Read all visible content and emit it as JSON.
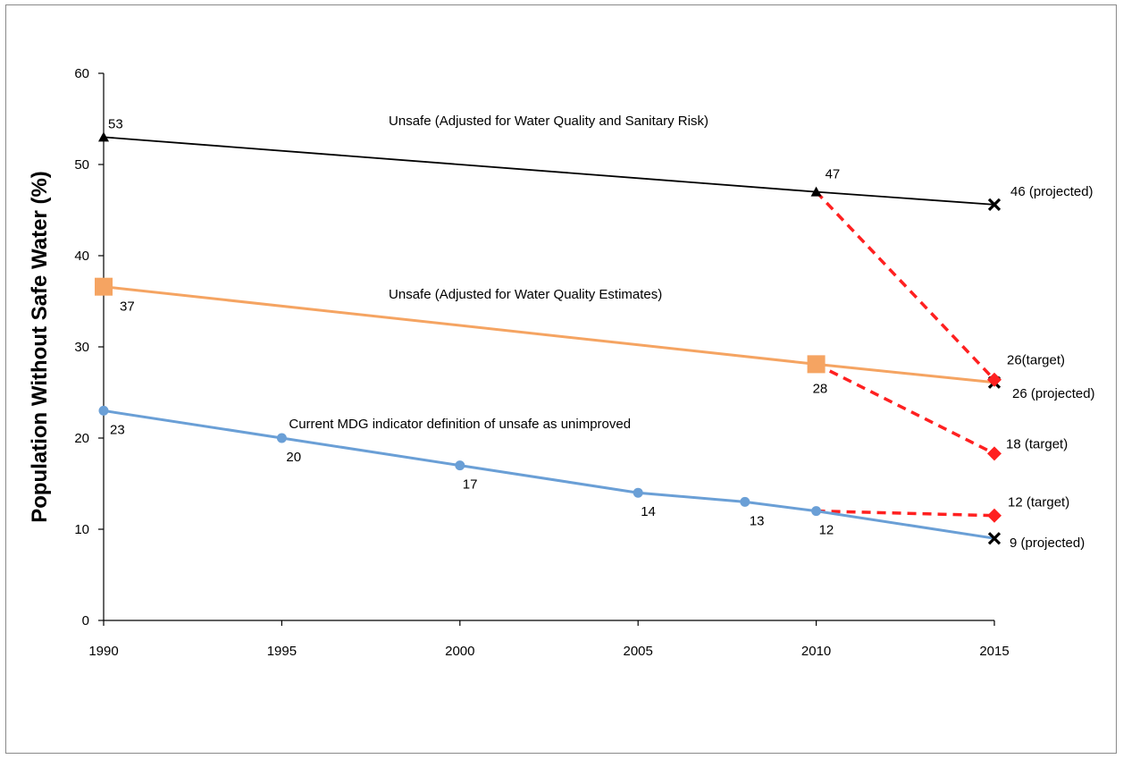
{
  "chart_data": {
    "type": "line",
    "title": "",
    "xlabel": "",
    "ylabel": "Population Without Safe Water (%)",
    "xlim": [
      1990,
      2015
    ],
    "ylim": [
      0,
      60
    ],
    "x_ticks": [
      1990,
      1995,
      2000,
      2005,
      2010,
      2015
    ],
    "y_ticks": [
      0,
      10,
      20,
      30,
      40,
      50,
      60
    ],
    "grid": false,
    "legend": "none",
    "series": [
      {
        "name": "Unsafe (Adjusted for Water Quality and Sanitary Risk)",
        "color": "#000000",
        "marker": "triangle",
        "points": [
          {
            "x": 1990,
            "y": 53,
            "label": "53"
          },
          {
            "x": 2010,
            "y": 47,
            "label": "47"
          }
        ],
        "projected": {
          "x": 2015,
          "y": 45.6,
          "label": "46 (projected)"
        }
      },
      {
        "name": "Unsafe (Adjusted for Water Quality Estimates)",
        "color": "#f5a462",
        "marker": "square",
        "points": [
          {
            "x": 1990,
            "y": 36.6,
            "label": "37"
          },
          {
            "x": 2010,
            "y": 28.1,
            "label": "28"
          }
        ],
        "projected": {
          "x": 2015,
          "y": 26.1,
          "label": "26 (projected)"
        }
      },
      {
        "name": "Current MDG indicator definition of unsafe as unimproved",
        "color": "#6a9fd6",
        "marker": "circle",
        "points": [
          {
            "x": 1990,
            "y": 23,
            "label": "23"
          },
          {
            "x": 1995,
            "y": 20,
            "label": "20"
          },
          {
            "x": 2000,
            "y": 17,
            "label": "17"
          },
          {
            "x": 2005,
            "y": 14,
            "label": "14"
          },
          {
            "x": 2008,
            "y": 13,
            "label": "13"
          },
          {
            "x": 2010,
            "y": 12,
            "label": "12"
          }
        ],
        "projected": {
          "x": 2015,
          "y": 9,
          "label": "9 (projected)"
        }
      }
    ],
    "targets": [
      {
        "from": {
          "x": 2010,
          "y": 47
        },
        "to": {
          "x": 2015,
          "y": 26.4
        },
        "label": "26(target)"
      },
      {
        "from": {
          "x": 2010,
          "y": 28.1
        },
        "to": {
          "x": 2015,
          "y": 18.3
        },
        "label": "18 (target)"
      },
      {
        "from": {
          "x": 2010,
          "y": 12
        },
        "to": {
          "x": 2015,
          "y": 11.5
        },
        "label": "12 (target)"
      }
    ],
    "target_color": "#ff2020"
  }
}
